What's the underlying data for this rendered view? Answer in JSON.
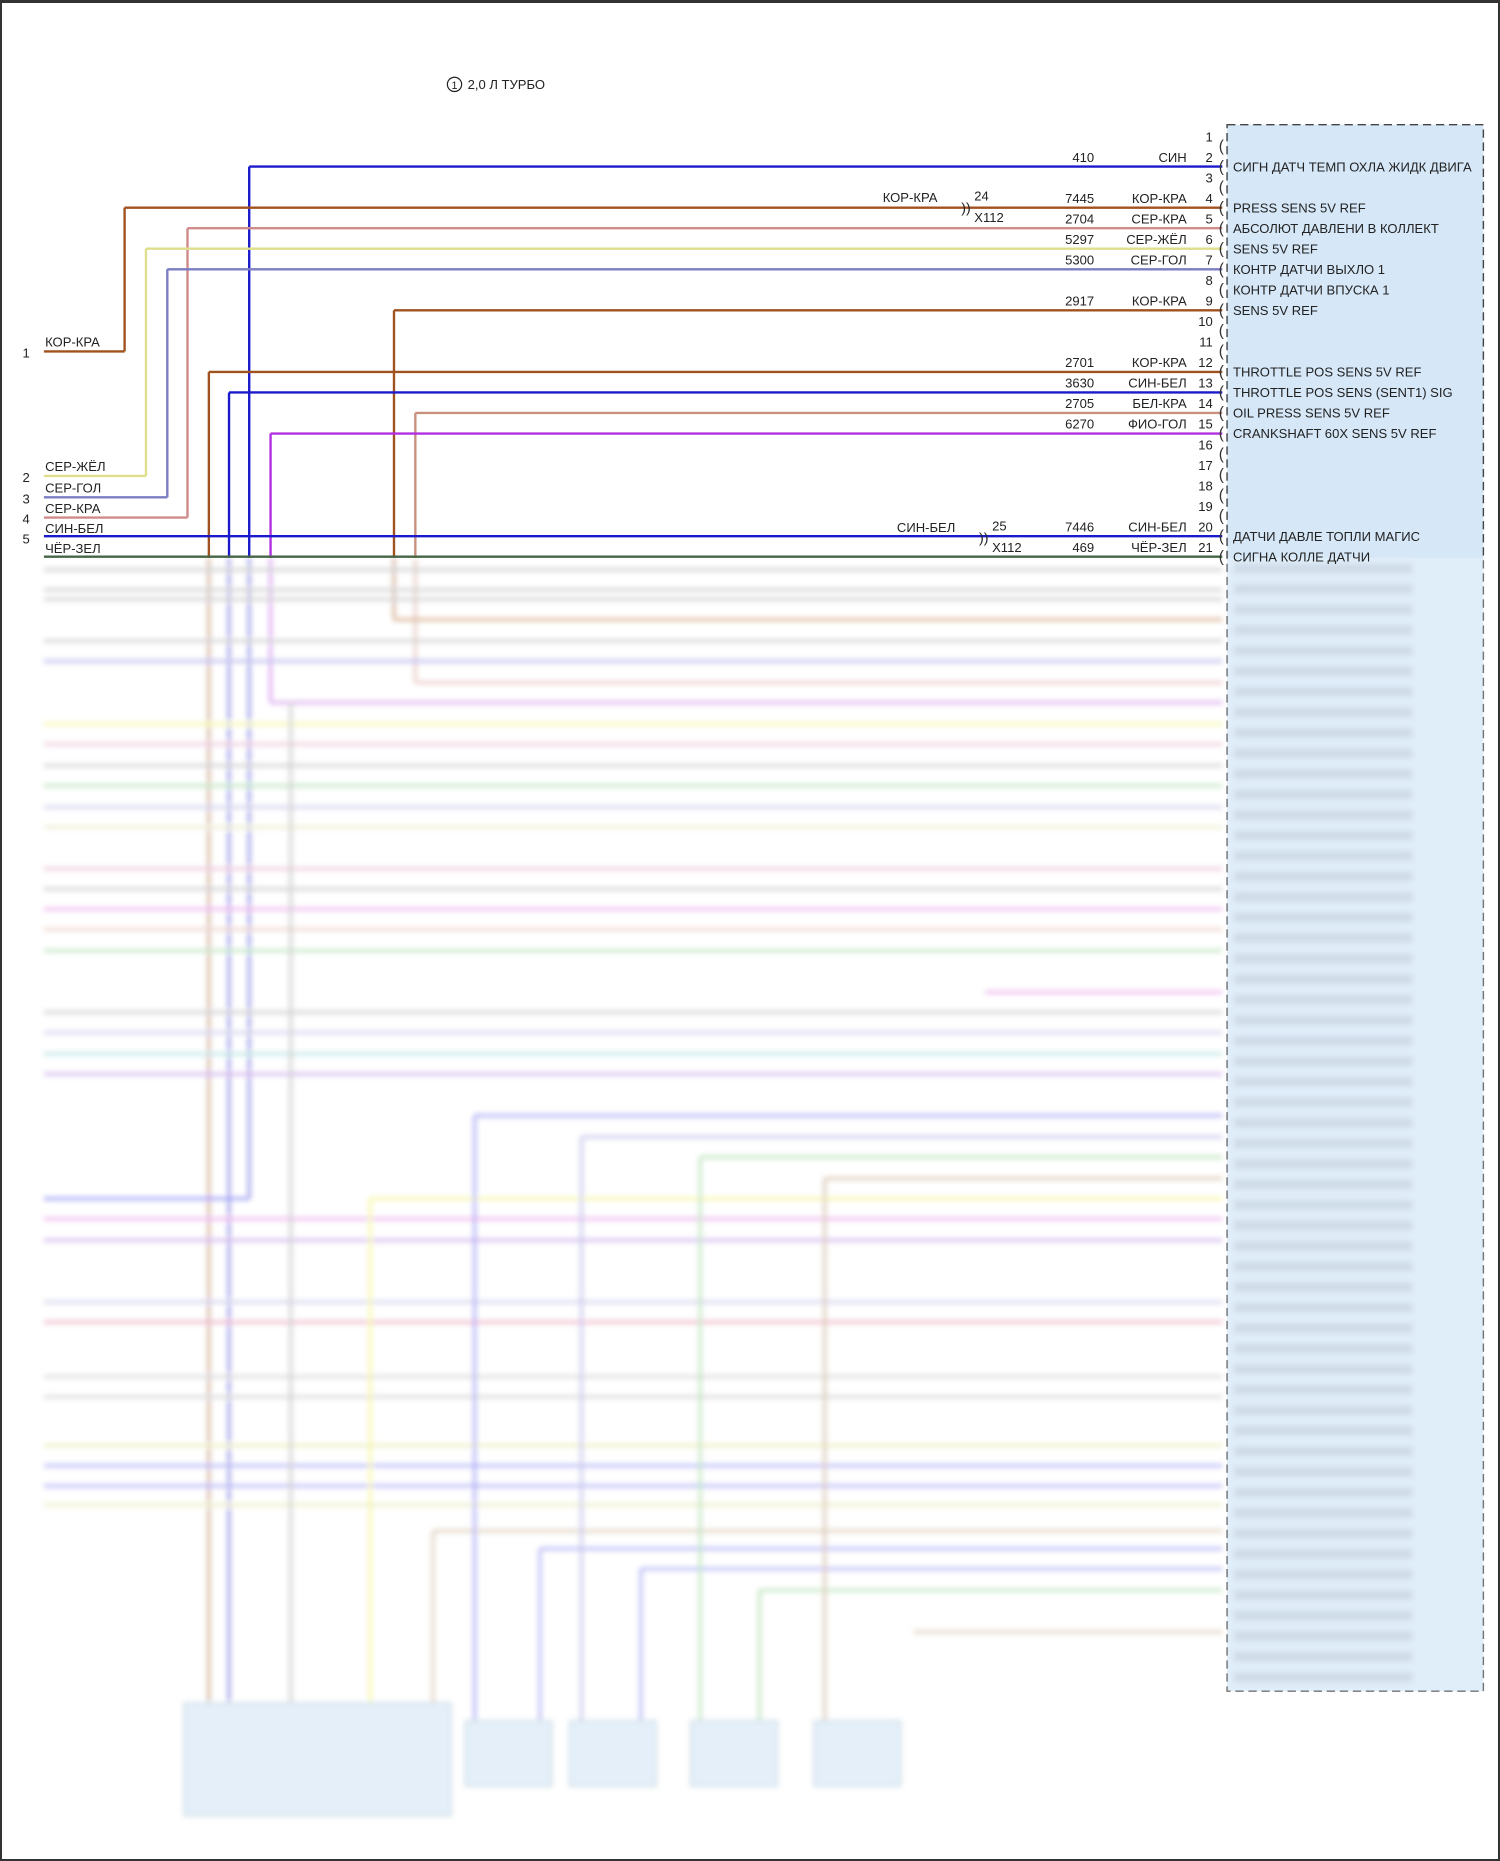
{
  "variant_note": {
    "marker": "1",
    "label": "2,0 Л ТУРБО"
  },
  "connector_box": {
    "fill": "#d6e8f8",
    "border": "#444444"
  },
  "pins": [
    {
      "pin": "1"
    },
    {
      "pin": "2",
      "circuit": "410",
      "color_label": "СИН",
      "function": "СИГН ДАТЧ ТЕМП ОХЛА ЖИДК ДВИГА",
      "hex": "#1a1acc"
    },
    {
      "pin": "3"
    },
    {
      "pin": "4",
      "circuit": "7445",
      "color_label": "КОР-КРА",
      "function": "PRESS SENS 5V REF",
      "hex": "#a0521e"
    },
    {
      "pin": "5",
      "circuit": "2704",
      "color_label": "СЕР-КРА",
      "function": "АБСОЛЮТ ДАВЛЕНИ В КОЛЛЕКТ",
      "hex": "#d08a8a"
    },
    {
      "pin": "6",
      "circuit": "5297",
      "color_label": "СЕР-ЖЁЛ",
      "function": "SENS 5V REF",
      "hex": "#dede8c"
    },
    {
      "pin": "7",
      "circuit": "5300",
      "color_label": "СЕР-ГОЛ",
      "function": "КОНТР ДАТЧИ ВЫХЛО 1",
      "hex": "#7c7cc4"
    },
    {
      "pin": "8",
      "function": "КОНТР ДАТЧИ ВПУСКА 1"
    },
    {
      "pin": "9",
      "circuit": "2917",
      "color_label": "КОР-КРА",
      "function": "SENS 5V REF",
      "hex": "#a0521e"
    },
    {
      "pin": "10"
    },
    {
      "pin": "11"
    },
    {
      "pin": "12",
      "circuit": "2701",
      "color_label": "КОР-КРА",
      "function": "THROTTLE POS SENS 5V REF",
      "hex": "#a0521e"
    },
    {
      "pin": "13",
      "circuit": "3630",
      "color_label": "СИН-БЕЛ",
      "function": "THROTTLE POS SENS (SENT1) SIG",
      "hex": "#1a1acc"
    },
    {
      "pin": "14",
      "circuit": "2705",
      "color_label": "БЕЛ-КРА",
      "function": "OIL PRESS SENS 5V REF",
      "hex": "#c8907e"
    },
    {
      "pin": "15",
      "circuit": "6270",
      "color_label": "ФИО-ГОЛ",
      "function": "CRANKSHAFT 60X SENS 5V REF",
      "hex": "#b030e0"
    },
    {
      "pin": "16"
    },
    {
      "pin": "17"
    },
    {
      "pin": "18"
    },
    {
      "pin": "19"
    },
    {
      "pin": "20",
      "circuit": "7446",
      "color_label": "СИН-БЕЛ",
      "function": "ДАТЧИ ДАВЛЕ ТОПЛИ МАГИС",
      "hex": "#1a1acc"
    },
    {
      "pin": "21",
      "circuit": "469",
      "color_label": "ЧЁР-ЗЕЛ",
      "function": "СИГНА КОЛЛЕ ДАТЧИ",
      "hex": "#446644"
    }
  ],
  "inline_connectors": [
    {
      "pin": "24",
      "connector": "X112",
      "color_label": "КОР-КРА"
    },
    {
      "pin": "25",
      "connector": "X112",
      "color_label": "СИН-БЕЛ"
    }
  ],
  "left_terminals": [
    {
      "num": "1",
      "color_label": "КОР-КРА"
    },
    {
      "num": "2",
      "color_label": "СЕР-ЖЁЛ"
    },
    {
      "num": "3",
      "color_label": "СЕР-ГОЛ"
    },
    {
      "num": "4",
      "color_label": "СЕР-КРА"
    },
    {
      "num": "5",
      "color_label": "СИН-БЕЛ"
    },
    {
      "num": "",
      "color_label": "ЧЁР-ЗЕЛ"
    }
  ]
}
